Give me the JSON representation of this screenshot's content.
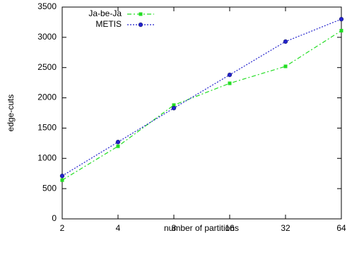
{
  "chart_data": {
    "type": "line",
    "x_label": "number of partitions",
    "y_label": "edge-cuts",
    "categories": [
      "2",
      "4",
      "8",
      "16",
      "32",
      "64"
    ],
    "series": [
      {
        "name": "Ja-be-Ja",
        "color": "#22dd22",
        "marker": "square",
        "values": [
          640,
          1200,
          1880,
          2240,
          2520,
          3110
        ]
      },
      {
        "name": "METIS",
        "color": "#2222cc",
        "marker": "circle",
        "values": [
          710,
          1270,
          1830,
          2380,
          2930,
          3300
        ]
      }
    ],
    "ylim": [
      0,
      3500
    ],
    "yticks": [
      0,
      500,
      1000,
      1500,
      2000,
      2500,
      3000,
      3500
    ],
    "legend": "upper left"
  }
}
